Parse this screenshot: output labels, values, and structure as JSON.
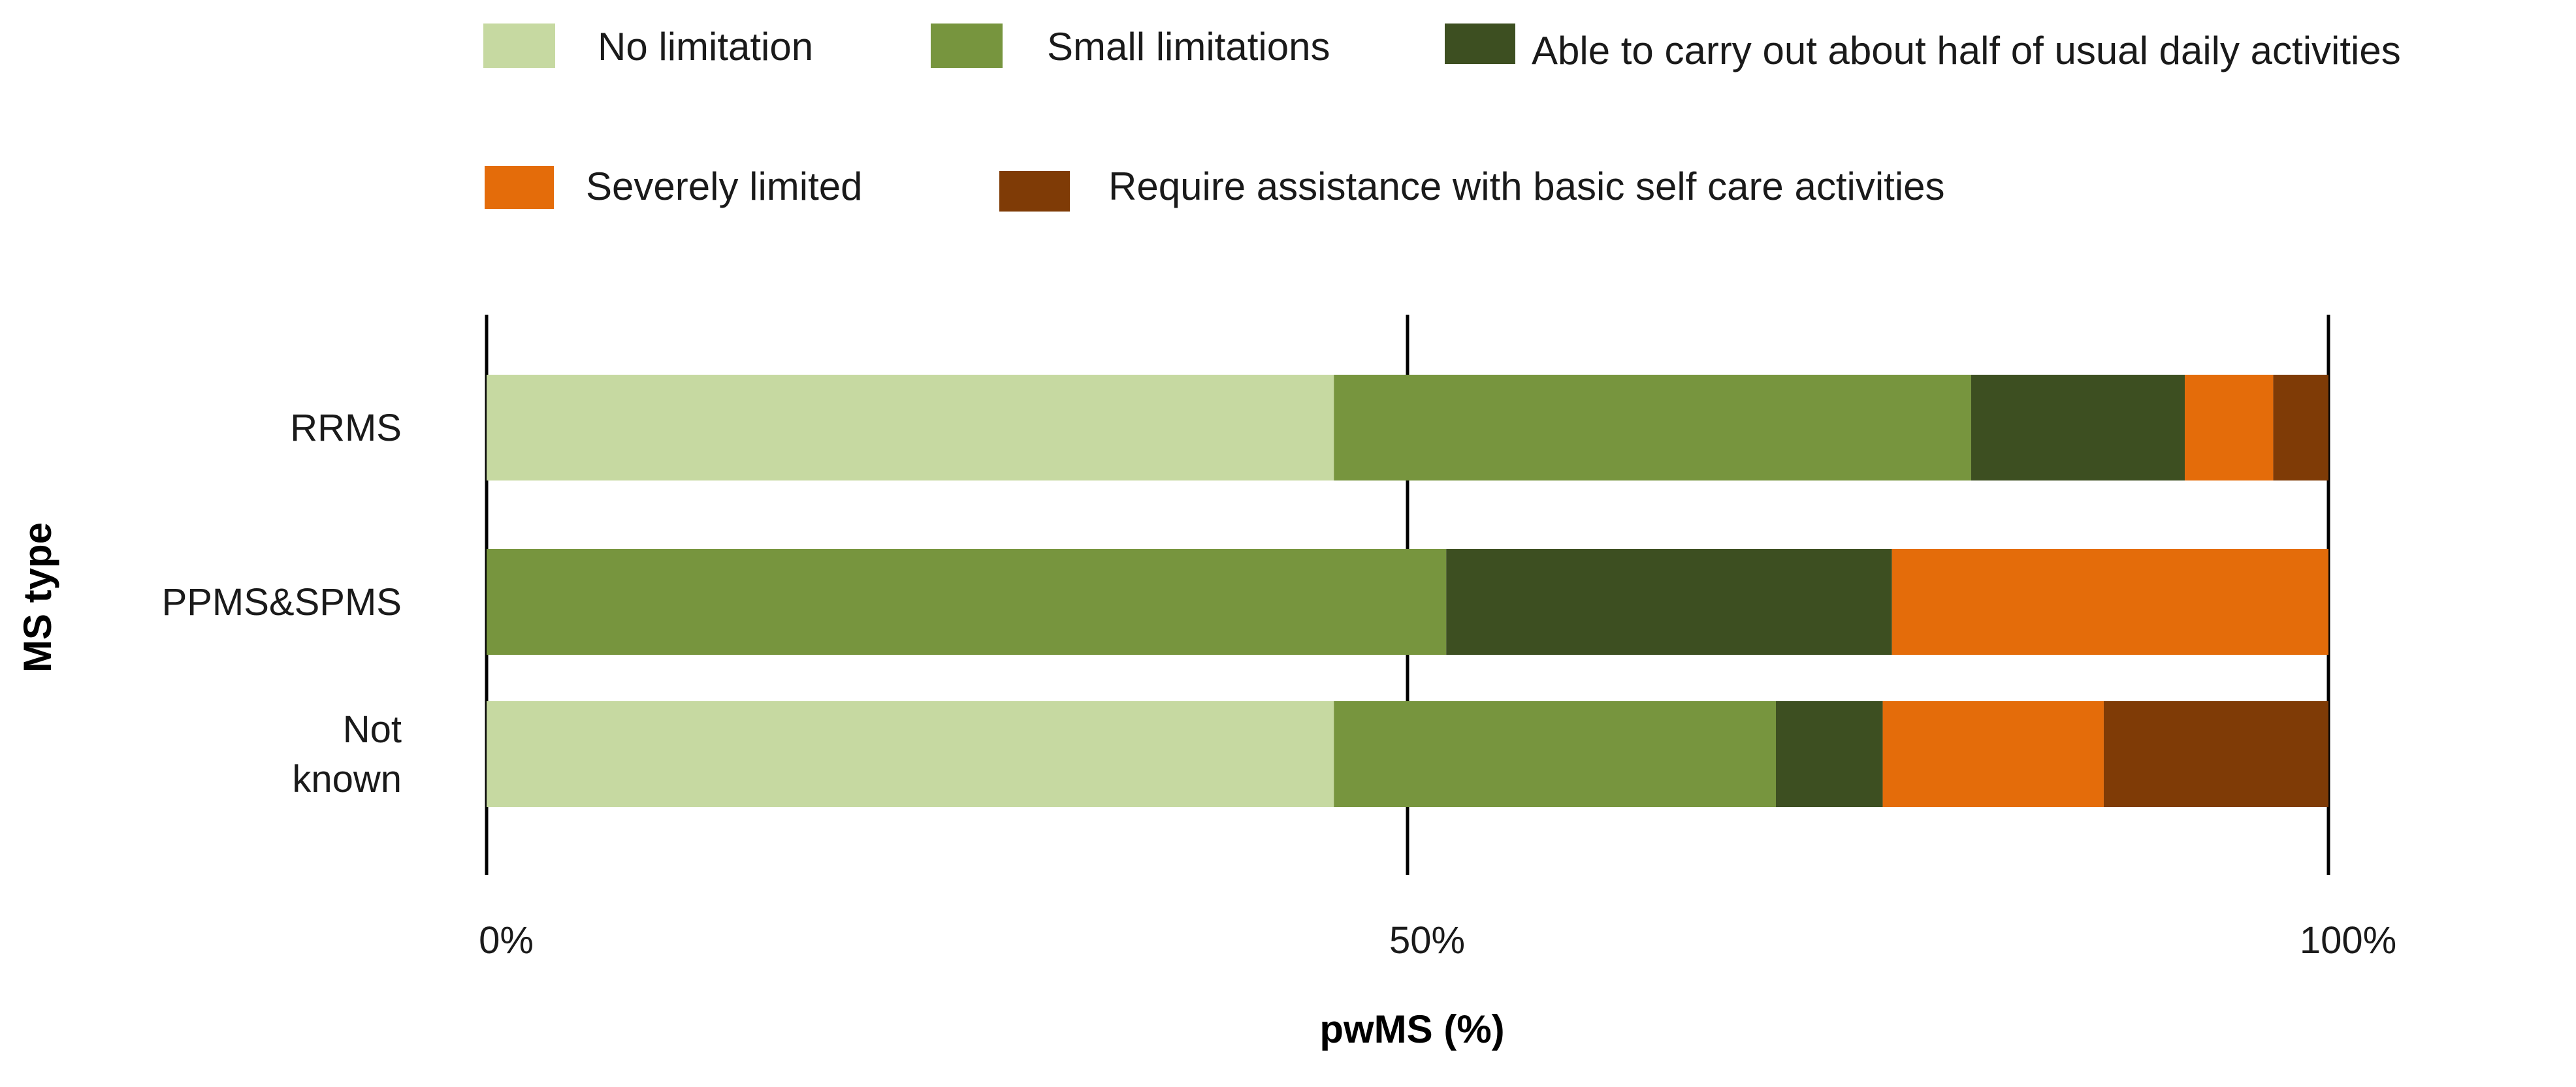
{
  "chart_data": {
    "type": "bar",
    "orientation": "horizontal",
    "stacked": true,
    "percent_stacked": true,
    "xlabel": "pwMS (%)",
    "ylabel": "MS type",
    "xlim": [
      0,
      100
    ],
    "x_ticks": [
      {
        "value": 0,
        "label": "0%"
      },
      {
        "value": 50,
        "label": "50%"
      },
      {
        "value": 100,
        "label": "100%"
      }
    ],
    "grid": true,
    "legend_position": "top",
    "categories": [
      {
        "id": "rrms",
        "lines": [
          "RRMS"
        ]
      },
      {
        "id": "ppms-spms",
        "lines": [
          "PPMS&SPMS"
        ]
      },
      {
        "id": "not-known",
        "lines": [
          "Not",
          "known"
        ]
      }
    ],
    "series": [
      {
        "name": "No limitation",
        "color": "#c6d9a1",
        "values": [
          46,
          0,
          46
        ]
      },
      {
        "name": "Small limitations",
        "color": "#77953e",
        "values": [
          34.6,
          52.1,
          24
        ]
      },
      {
        "name": "Able to carry out about half of usual daily activities",
        "color": "#3d4f21",
        "values": [
          11.6,
          24.2,
          5.8
        ]
      },
      {
        "name": "Severely limited",
        "color": "#e46c0a",
        "values": [
          4.8,
          23.7,
          12
        ]
      },
      {
        "name": "Require assistance with  basic self care activities",
        "color": "#7f3b06",
        "values": [
          3,
          0,
          12.2
        ]
      }
    ]
  }
}
